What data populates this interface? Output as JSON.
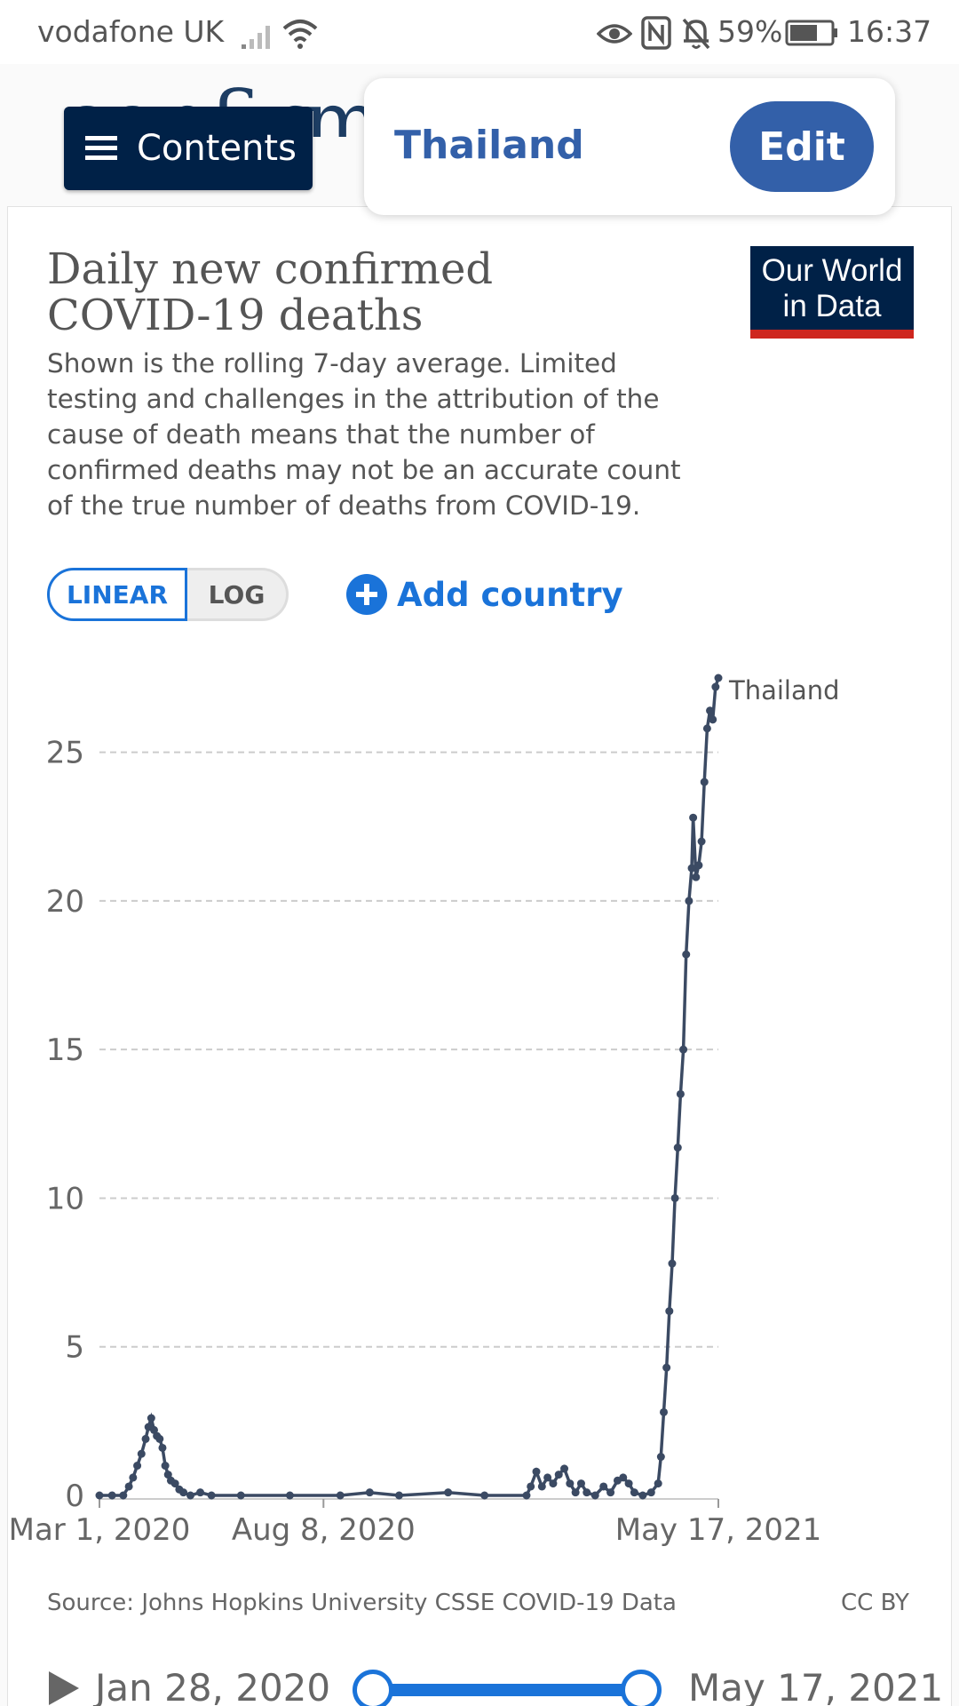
{
  "status_bar": {
    "carrier": "vodafone UK",
    "battery": "59%",
    "time": "16:37",
    "icons": [
      "signal-icon",
      "wifi-icon",
      "eye-icon",
      "nfc-icon",
      "bell-off-icon",
      "battery-icon"
    ]
  },
  "page": {
    "heading_fragment": "confirmed deaths?"
  },
  "contents_button": {
    "label": "Contents",
    "icon": "hamburger-icon"
  },
  "country_selector": {
    "country": "Thailand",
    "edit_label": "Edit"
  },
  "chart_header": {
    "title": "Daily new confirmed COVID-19 deaths",
    "subtitle": "Shown is the rolling 7-day average. Limited testing and challenges in the attribution of the cause of death means that the number of confirmed deaths may not be an accurate count of the true number of deaths from COVID-19.",
    "logo_line1": "Our World",
    "logo_line2": "in Data"
  },
  "controls": {
    "linear_label": "LINEAR",
    "log_label": "LOG",
    "add_country_label": "Add country"
  },
  "chart_data": {
    "type": "line",
    "title": "Daily new confirmed COVID-19 deaths",
    "xlabel": "",
    "ylabel": "",
    "x_tick_labels": [
      "Mar 1, 2020",
      "Aug 8, 2020",
      "May 17, 2021"
    ],
    "y_ticks": [
      0,
      5,
      10,
      15,
      20,
      25
    ],
    "ylim": [
      0,
      27.5
    ],
    "xlim": [
      "2020-03-01",
      "2021-05-17"
    ],
    "grid": "horizontal dashed",
    "series": [
      {
        "name": "Thailand",
        "color": "#3b4a63",
        "points": [
          [
            "2020-03-01",
            0.0
          ],
          [
            "2020-03-10",
            0.0
          ],
          [
            "2020-03-18",
            0.0
          ],
          [
            "2020-03-22",
            0.3
          ],
          [
            "2020-03-25",
            0.6
          ],
          [
            "2020-03-28",
            1.0
          ],
          [
            "2020-03-31",
            1.4
          ],
          [
            "2020-04-03",
            1.9
          ],
          [
            "2020-04-05",
            2.3
          ],
          [
            "2020-04-07",
            2.6
          ],
          [
            "2020-04-09",
            2.2
          ],
          [
            "2020-04-11",
            2.0
          ],
          [
            "2020-04-13",
            1.9
          ],
          [
            "2020-04-15",
            1.6
          ],
          [
            "2020-04-17",
            1.0
          ],
          [
            "2020-04-19",
            0.7
          ],
          [
            "2020-04-21",
            0.5
          ],
          [
            "2020-04-24",
            0.4
          ],
          [
            "2020-04-27",
            0.2
          ],
          [
            "2020-04-30",
            0.1
          ],
          [
            "2020-05-05",
            0.0
          ],
          [
            "2020-05-12",
            0.1
          ],
          [
            "2020-05-20",
            0.0
          ],
          [
            "2020-06-10",
            0.0
          ],
          [
            "2020-07-15",
            0.0
          ],
          [
            "2020-08-20",
            0.0
          ],
          [
            "2020-09-10",
            0.1
          ],
          [
            "2020-10-01",
            0.0
          ],
          [
            "2020-11-05",
            0.1
          ],
          [
            "2020-12-01",
            0.0
          ],
          [
            "2020-12-31",
            0.0
          ],
          [
            "2021-01-03",
            0.3
          ],
          [
            "2021-01-07",
            0.8
          ],
          [
            "2021-01-11",
            0.3
          ],
          [
            "2021-01-15",
            0.6
          ],
          [
            "2021-01-19",
            0.4
          ],
          [
            "2021-01-23",
            0.7
          ],
          [
            "2021-01-27",
            0.9
          ],
          [
            "2021-01-31",
            0.4
          ],
          [
            "2021-02-04",
            0.1
          ],
          [
            "2021-02-08",
            0.4
          ],
          [
            "2021-02-12",
            0.1
          ],
          [
            "2021-02-18",
            0.0
          ],
          [
            "2021-02-24",
            0.3
          ],
          [
            "2021-03-01",
            0.1
          ],
          [
            "2021-03-06",
            0.5
          ],
          [
            "2021-03-10",
            0.6
          ],
          [
            "2021-03-14",
            0.4
          ],
          [
            "2021-03-18",
            0.1
          ],
          [
            "2021-03-24",
            0.0
          ],
          [
            "2021-03-30",
            0.1
          ],
          [
            "2021-04-04",
            0.4
          ],
          [
            "2021-04-06",
            1.3
          ],
          [
            "2021-04-08",
            2.8
          ],
          [
            "2021-04-10",
            4.3
          ],
          [
            "2021-04-12",
            6.2
          ],
          [
            "2021-04-14",
            7.8
          ],
          [
            "2021-04-16",
            10.0
          ],
          [
            "2021-04-18",
            11.7
          ],
          [
            "2021-04-20",
            13.5
          ],
          [
            "2021-04-22",
            15.0
          ],
          [
            "2021-04-24",
            18.2
          ],
          [
            "2021-04-26",
            20.0
          ],
          [
            "2021-04-28",
            21.1
          ],
          [
            "2021-04-29",
            22.8
          ],
          [
            "2021-05-01",
            20.8
          ],
          [
            "2021-05-03",
            21.2
          ],
          [
            "2021-05-05",
            22.0
          ],
          [
            "2021-05-07",
            24.0
          ],
          [
            "2021-05-09",
            25.8
          ],
          [
            "2021-05-11",
            26.4
          ],
          [
            "2021-05-13",
            26.1
          ],
          [
            "2021-05-15",
            27.2
          ],
          [
            "2021-05-17",
            27.5
          ]
        ]
      }
    ]
  },
  "footer": {
    "source": "Source: Johns Hopkins University CSSE COVID-19 Data",
    "license": "CC BY"
  },
  "timeline": {
    "start_date": "Jan 28, 2020",
    "end_date": "May 17, 2021",
    "play_icon": "play-icon"
  }
}
